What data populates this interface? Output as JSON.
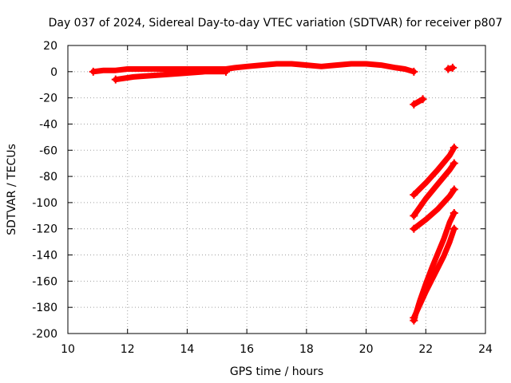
{
  "chart_data": {
    "type": "scatter",
    "title": "Day 037 of 2024, Sidereal Day-to-day VTEC variation (SDTVAR) for receiver p807",
    "xlabel": "GPS time / hours",
    "ylabel": "SDTVAR / TECUs",
    "xlim": [
      10,
      24
    ],
    "ylim": [
      -200,
      20
    ],
    "xticks": [
      10,
      12,
      14,
      16,
      18,
      20,
      22,
      24
    ],
    "yticks": [
      20,
      0,
      -20,
      -40,
      -60,
      -80,
      -100,
      -120,
      -140,
      -160,
      -180,
      -200
    ],
    "grid": true,
    "marker": "plus",
    "series": [
      {
        "color": "#ff0000",
        "segments": [
          {
            "x": [
              10.85,
              11.2,
              11.6,
              12.0,
              12.5,
              13.0,
              13.5,
              14.0,
              14.5,
              15.0,
              15.3,
              15.6,
              16.0,
              16.5,
              17.0,
              17.5,
              18.0,
              18.5,
              19.0,
              19.5,
              20.0,
              20.5,
              21.0,
              21.3,
              21.6
            ],
            "y": [
              0,
              1,
              1,
              2,
              2,
              2,
              2,
              2,
              2,
              2,
              2,
              3,
              4,
              5,
              6,
              6,
              5,
              4,
              5,
              6,
              6,
              5,
              3,
              2,
              0
            ]
          },
          {
            "x": [
              11.6,
              12.2,
              12.8,
              13.4,
              14.0,
              14.6,
              15.3
            ],
            "y": [
              -6,
              -4,
              -3,
              -2,
              -1,
              0,
              0
            ]
          },
          {
            "x": [
              21.6,
              21.75,
              21.9
            ],
            "y": [
              -25,
              -23,
              -21
            ]
          },
          {
            "x": [
              22.75,
              22.9
            ],
            "y": [
              2,
              3
            ]
          },
          {
            "x": [
              21.6,
              22.0,
              22.4,
              22.8,
              22.95
            ],
            "y": [
              -94,
              -85,
              -75,
              -64,
              -58
            ]
          },
          {
            "x": [
              21.6,
              22.0,
              22.4,
              22.8,
              22.95
            ],
            "y": [
              -110,
              -97,
              -86,
              -75,
              -70
            ]
          },
          {
            "x": [
              21.6,
              22.0,
              22.4,
              22.8,
              22.95
            ],
            "y": [
              -120,
              -113,
              -105,
              -95,
              -90
            ]
          },
          {
            "x": [
              21.6,
              21.8,
              22.0,
              22.2,
              22.4,
              22.6,
              22.8,
              22.95
            ],
            "y": [
              -190,
              -175,
              -162,
              -150,
              -139,
              -128,
              -115,
              -108
            ]
          },
          {
            "x": [
              21.6,
              21.8,
              22.0,
              22.2,
              22.4,
              22.6,
              22.8,
              22.95
            ],
            "y": [
              -188,
              -178,
              -168,
              -159,
              -150,
              -141,
              -130,
              -120
            ]
          }
        ]
      }
    ]
  }
}
